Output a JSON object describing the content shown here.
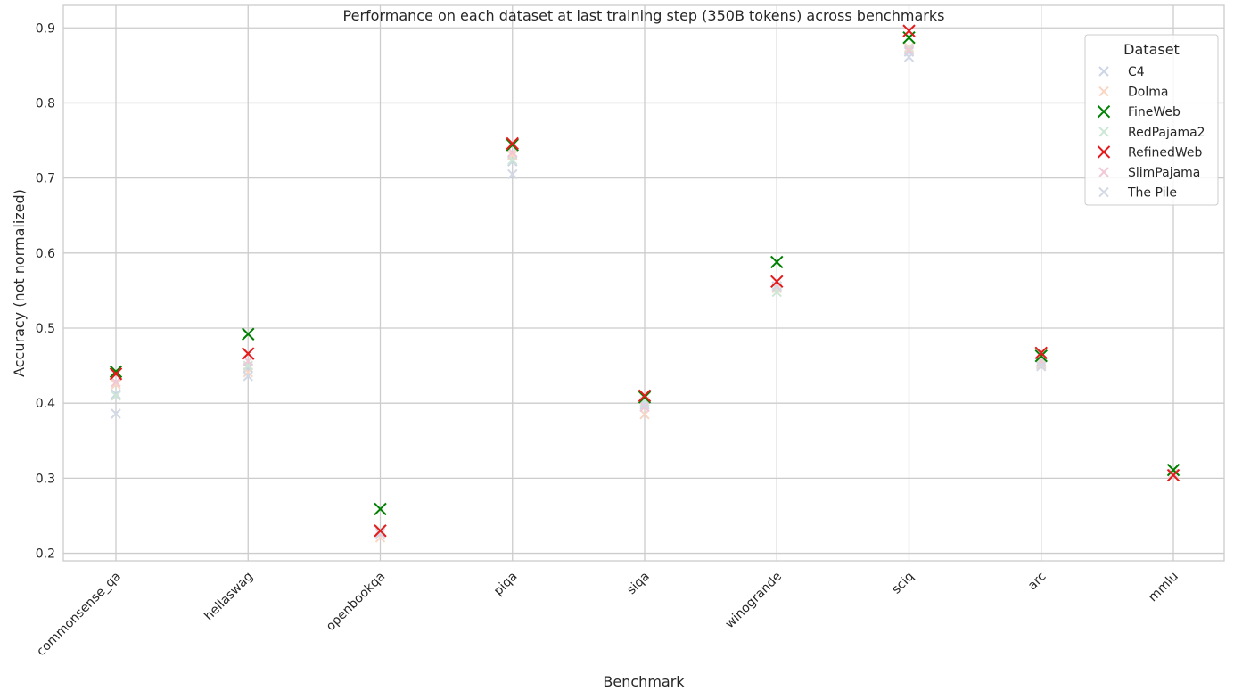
{
  "chart_data": {
    "type": "scatter",
    "title": "Performance on each dataset at last training step (350B tokens) across benchmarks",
    "xlabel": "Benchmark",
    "ylabel": "Accuracy (not normalized)",
    "categories": [
      "commonsense_qa",
      "hellaswag",
      "openbookqa",
      "piqa",
      "siqa",
      "winogrande",
      "sciq",
      "arc",
      "mmlu"
    ],
    "ylim": [
      0.19,
      0.93
    ],
    "yticks": [
      "0.2",
      "0.3",
      "0.4",
      "0.5",
      "0.6",
      "0.7",
      "0.8",
      "0.9"
    ],
    "grid": true,
    "legend": {
      "title": "Dataset",
      "placement": "top-right"
    },
    "series": [
      {
        "name": "C4",
        "color": "#ccd5e8",
        "highlight": false,
        "values": [
          0.412,
          0.447,
          0.23,
          0.722,
          0.4,
          0.555,
          0.868,
          0.452,
          0.305
        ]
      },
      {
        "name": "Dolma",
        "color": "#f9d6c4",
        "highlight": false,
        "values": [
          0.425,
          0.441,
          0.221,
          0.73,
          0.385,
          0.553,
          0.874,
          0.451,
          0.305
        ]
      },
      {
        "name": "FineWeb",
        "color": "#008000",
        "highlight": true,
        "values": [
          0.442,
          0.492,
          0.259,
          0.744,
          0.408,
          0.588,
          0.887,
          0.463,
          0.311
        ]
      },
      {
        "name": "RedPajama2",
        "color": "#cde7d7",
        "highlight": false,
        "values": [
          0.41,
          0.45,
          0.231,
          0.724,
          0.402,
          0.548,
          0.872,
          0.454,
          0.306
        ]
      },
      {
        "name": "RefinedWeb",
        "color": "#e41a1c",
        "highlight": true,
        "values": [
          0.439,
          0.466,
          0.23,
          0.746,
          0.41,
          0.562,
          0.896,
          0.467,
          0.304
        ]
      },
      {
        "name": "SlimPajama",
        "color": "#f2c8d6",
        "highlight": false,
        "values": [
          0.428,
          0.456,
          0.228,
          0.734,
          0.395,
          0.556,
          0.87,
          0.456,
          0.306
        ]
      },
      {
        "name": "The Pile",
        "color": "#d3d8e6",
        "highlight": false,
        "values": [
          0.386,
          0.436,
          0.226,
          0.705,
          0.398,
          0.556,
          0.861,
          0.449,
          0.304
        ]
      }
    ]
  }
}
